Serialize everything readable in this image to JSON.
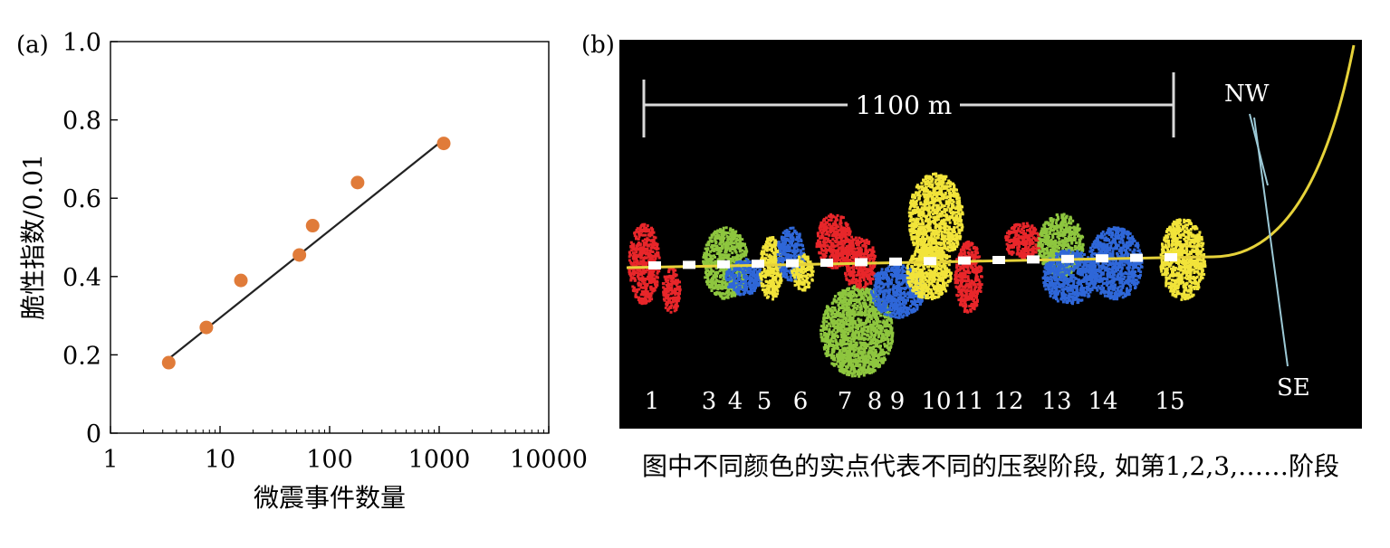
{
  "panel_a": {
    "label": "(a)"
  },
  "panel_b": {
    "label": "(b)",
    "scale_label": "1100 m",
    "direction_top": "NW",
    "direction_bottom": "SE",
    "stage_labels": [
      "1",
      "3",
      "4",
      "5",
      "6",
      "7",
      "8",
      "9",
      "10",
      "11",
      "12",
      "13",
      "14",
      "15"
    ],
    "caption": "图中不同颜色的实点代表不同的压裂阶段, 如第1,2,3,……阶段",
    "colors": {
      "background": "#000000",
      "well_path": "#e6d23a",
      "scale_bar": "#d9d9d9",
      "red": "#e8262a",
      "blue": "#2f67d8",
      "green": "#8ec63f",
      "yellow": "#f2e43a",
      "white_marker": "#ffffff"
    }
  },
  "chart_data": {
    "type": "scatter",
    "xlabel": "微震事件数量",
    "ylabel": "脆性指数/0.01",
    "xscale": "log",
    "xlim": [
      1,
      10000
    ],
    "ylim": [
      0,
      1.0
    ],
    "xticks": [
      "1",
      "10",
      "100",
      "1000",
      "10000"
    ],
    "yticks": [
      "0",
      "0.2",
      "0.4",
      "0.6",
      "0.8",
      "1.0"
    ],
    "grid": false,
    "series": [
      {
        "points": [
          {
            "x": 3.4,
            "y": 0.18
          },
          {
            "x": 7.5,
            "y": 0.27
          },
          {
            "x": 15.5,
            "y": 0.39
          },
          {
            "x": 53,
            "y": 0.455
          },
          {
            "x": 70,
            "y": 0.53
          },
          {
            "x": 180,
            "y": 0.64
          },
          {
            "x": 1100,
            "y": 0.74
          }
        ],
        "marker_color": "#e07b39"
      }
    ],
    "fit_line": {
      "x": [
        3.4,
        1100
      ],
      "y": [
        0.19,
        0.75
      ],
      "color": "#222222"
    }
  }
}
